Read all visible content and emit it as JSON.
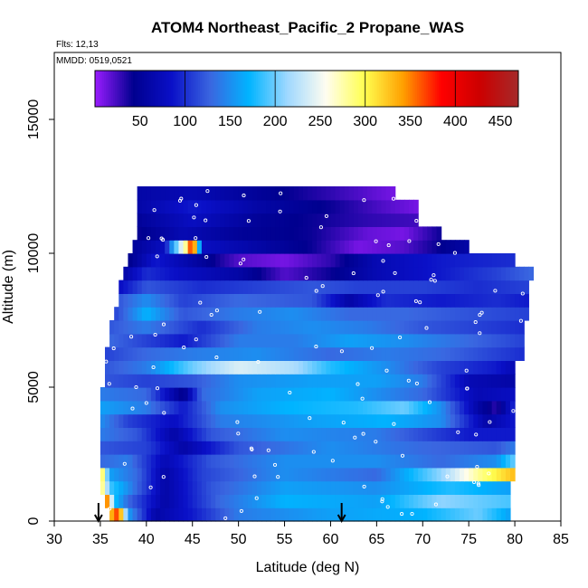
{
  "chart_data": {
    "type": "heatmap",
    "title": "ATOM4 Northeast_Pacific_2 Propane_WAS",
    "annotations": {
      "flights": "Flts: 12,13",
      "dates": "MMDD: 0519,0521"
    },
    "xlabel": "Latitude (deg N)",
    "ylabel": "Altitude (m)",
    "xlim": [
      30,
      85
    ],
    "ylim": [
      0,
      17500
    ],
    "x_ticks": [
      30,
      35,
      40,
      45,
      50,
      55,
      60,
      65,
      70,
      75,
      80,
      85
    ],
    "y_ticks": [
      0,
      5000,
      10000,
      15000
    ],
    "colorbar": {
      "range": [
        0,
        470
      ],
      "ticks": [
        50,
        100,
        150,
        200,
        250,
        300,
        350,
        400,
        450
      ],
      "colors": [
        "#9a1cff",
        "#00008f",
        "#0a10c8",
        "#3a66e0",
        "#00b4ff",
        "#9fd8ff",
        "#fffdf0",
        "#ffff50",
        "#ffa000",
        "#ff0000",
        "#cc0000",
        "#a52a2a"
      ]
    },
    "arrows_at_latitude": [
      34.8,
      61.2
    ],
    "bands": [
      {
        "alt": [
          0,
          500
        ],
        "lat": [
          36,
          79.5
        ],
        "stops": [
          [
            36,
            320
          ],
          [
            37,
            380
          ],
          [
            38,
            160
          ],
          [
            41,
            60
          ],
          [
            45,
            90
          ],
          [
            50,
            140
          ],
          [
            60,
            160
          ],
          [
            70,
            170
          ],
          [
            76,
            200
          ],
          [
            79.5,
            160
          ]
        ]
      },
      {
        "alt": [
          500,
          1000
        ],
        "lat": [
          35.5,
          79.5
        ],
        "stops": [
          [
            35.5,
            400
          ],
          [
            36.5,
            180
          ],
          [
            38,
            130
          ],
          [
            42,
            60
          ],
          [
            48,
            130
          ],
          [
            55,
            170
          ],
          [
            65,
            160
          ],
          [
            72,
            210
          ],
          [
            79.5,
            190
          ]
        ]
      },
      {
        "alt": [
          1000,
          1500
        ],
        "lat": [
          35,
          79.5
        ],
        "stops": [
          [
            35,
            310
          ],
          [
            36,
            190
          ],
          [
            38,
            150
          ],
          [
            42,
            60
          ],
          [
            47,
            120
          ],
          [
            55,
            160
          ],
          [
            65,
            150
          ],
          [
            73,
            180
          ],
          [
            79.5,
            160
          ]
        ]
      },
      {
        "alt": [
          1500,
          2000
        ],
        "lat": [
          35,
          80
        ],
        "stops": [
          [
            35,
            330
          ],
          [
            36,
            160
          ],
          [
            39,
            130
          ],
          [
            42,
            60
          ],
          [
            46,
            110
          ],
          [
            55,
            150
          ],
          [
            65,
            130
          ],
          [
            72,
            210
          ],
          [
            76,
            280
          ],
          [
            80,
            330
          ]
        ]
      },
      {
        "alt": [
          2000,
          2500
        ],
        "lat": [
          35,
          80
        ],
        "stops": [
          [
            35,
            130
          ],
          [
            38,
            140
          ],
          [
            42,
            70
          ],
          [
            47,
            120
          ],
          [
            55,
            150
          ],
          [
            65,
            150
          ],
          [
            72,
            130
          ],
          [
            78,
            150
          ],
          [
            80,
            200
          ]
        ]
      },
      {
        "alt": [
          2500,
          3000
        ],
        "lat": [
          35,
          80
        ],
        "stops": [
          [
            35,
            120
          ],
          [
            40,
            110
          ],
          [
            44,
            60
          ],
          [
            50,
            120
          ],
          [
            60,
            150
          ],
          [
            70,
            130
          ],
          [
            78,
            120
          ],
          [
            80,
            140
          ]
        ]
      },
      {
        "alt": [
          3000,
          3500
        ],
        "lat": [
          35,
          80
        ],
        "stops": [
          [
            35,
            140
          ],
          [
            39,
            120
          ],
          [
            43,
            60
          ],
          [
            47,
            120
          ],
          [
            55,
            150
          ],
          [
            65,
            140
          ],
          [
            75,
            90
          ],
          [
            80,
            90
          ]
        ]
      },
      {
        "alt": [
          3500,
          4000
        ],
        "lat": [
          35,
          80
        ],
        "stops": [
          [
            35,
            150
          ],
          [
            38,
            110
          ],
          [
            43,
            80
          ],
          [
            48,
            140
          ],
          [
            58,
            160
          ],
          [
            66,
            170
          ],
          [
            72,
            150
          ],
          [
            77,
            60
          ],
          [
            80,
            90
          ]
        ]
      },
      {
        "alt": [
          4000,
          4500
        ],
        "lat": [
          35,
          80
        ],
        "stops": [
          [
            35,
            160
          ],
          [
            40,
            140
          ],
          [
            44,
            90
          ],
          [
            48,
            150
          ],
          [
            55,
            170
          ],
          [
            63,
            180
          ],
          [
            68,
            200
          ],
          [
            72,
            150
          ],
          [
            76,
            60
          ],
          [
            78,
            30
          ],
          [
            80,
            100
          ]
        ]
      },
      {
        "alt": [
          4500,
          5000
        ],
        "lat": [
          35,
          80
        ],
        "stops": [
          [
            35,
            140
          ],
          [
            40,
            130
          ],
          [
            44,
            40
          ],
          [
            46,
            130
          ],
          [
            52,
            160
          ],
          [
            60,
            170
          ],
          [
            65,
            150
          ],
          [
            70,
            130
          ],
          [
            76,
            70
          ],
          [
            80,
            80
          ]
        ]
      },
      {
        "alt": [
          5000,
          5500
        ],
        "lat": [
          35.5,
          80
        ],
        "stops": [
          [
            35.5,
            120
          ],
          [
            40,
            110
          ],
          [
            45,
            120
          ],
          [
            50,
            150
          ],
          [
            58,
            160
          ],
          [
            65,
            160
          ],
          [
            70,
            140
          ],
          [
            75,
            70
          ],
          [
            80,
            60
          ]
        ]
      },
      {
        "alt": [
          5500,
          6000
        ],
        "lat": [
          35.5,
          80
        ],
        "stops": [
          [
            35.5,
            120
          ],
          [
            40,
            140
          ],
          [
            45,
            200
          ],
          [
            50,
            240
          ],
          [
            56,
            220
          ],
          [
            60,
            180
          ],
          [
            66,
            150
          ],
          [
            72,
            110
          ],
          [
            78,
            90
          ],
          [
            80,
            70
          ]
        ]
      },
      {
        "alt": [
          6000,
          6500
        ],
        "lat": [
          35.5,
          81
        ],
        "stops": [
          [
            35.5,
            110
          ],
          [
            40,
            130
          ],
          [
            45,
            140
          ],
          [
            52,
            150
          ],
          [
            60,
            130
          ],
          [
            66,
            140
          ],
          [
            72,
            130
          ],
          [
            78,
            110
          ],
          [
            81,
            100
          ]
        ]
      },
      {
        "alt": [
          6500,
          7000
        ],
        "lat": [
          36,
          81
        ],
        "stops": [
          [
            36,
            130
          ],
          [
            40,
            110
          ],
          [
            44,
            90
          ],
          [
            50,
            140
          ],
          [
            56,
            140
          ],
          [
            62,
            160
          ],
          [
            68,
            150
          ],
          [
            75,
            130
          ],
          [
            81,
            110
          ]
        ]
      },
      {
        "alt": [
          7000,
          7500
        ],
        "lat": [
          36,
          81
        ],
        "stops": [
          [
            36,
            120
          ],
          [
            40,
            140
          ],
          [
            46,
            100
          ],
          [
            52,
            140
          ],
          [
            58,
            150
          ],
          [
            64,
            140
          ],
          [
            70,
            120
          ],
          [
            76,
            110
          ],
          [
            81,
            100
          ]
        ]
      },
      {
        "alt": [
          7500,
          8000
        ],
        "lat": [
          36.5,
          81.5
        ],
        "stops": [
          [
            36.5,
            110
          ],
          [
            40,
            170
          ],
          [
            44,
            120
          ],
          [
            50,
            140
          ],
          [
            56,
            150
          ],
          [
            62,
            130
          ],
          [
            68,
            130
          ],
          [
            74,
            120
          ],
          [
            81.5,
            110
          ]
        ]
      },
      {
        "alt": [
          8000,
          8500
        ],
        "lat": [
          37,
          81.5
        ],
        "stops": [
          [
            37,
            120
          ],
          [
            40,
            150
          ],
          [
            44,
            110
          ],
          [
            50,
            130
          ],
          [
            58,
            120
          ],
          [
            62,
            60
          ],
          [
            66,
            100
          ],
          [
            72,
            90
          ],
          [
            78,
            100
          ],
          [
            81.5,
            90
          ]
        ]
      },
      {
        "alt": [
          8500,
          9000
        ],
        "lat": [
          37,
          81.5
        ],
        "stops": [
          [
            37,
            80
          ],
          [
            40,
            120
          ],
          [
            46,
            100
          ],
          [
            52,
            110
          ],
          [
            58,
            120
          ],
          [
            63,
            110
          ],
          [
            70,
            110
          ],
          [
            76,
            100
          ],
          [
            81.5,
            110
          ]
        ]
      },
      {
        "alt": [
          9000,
          9500
        ],
        "lat": [
          37.5,
          82
        ],
        "stops": [
          [
            37.5,
            60
          ],
          [
            40,
            100
          ],
          [
            44,
            80
          ],
          [
            50,
            60
          ],
          [
            55,
            20
          ],
          [
            60,
            40
          ],
          [
            65,
            70
          ],
          [
            72,
            90
          ],
          [
            78,
            110
          ],
          [
            82,
            130
          ]
        ]
      },
      {
        "alt": [
          9500,
          10000
        ],
        "lat": [
          38,
          80
        ],
        "stops": [
          [
            38,
            40
          ],
          [
            41,
            90
          ],
          [
            45,
            60
          ],
          [
            50,
            20
          ],
          [
            55,
            10
          ],
          [
            60,
            30
          ],
          [
            65,
            70
          ],
          [
            72,
            90
          ],
          [
            80,
            100
          ]
        ]
      },
      {
        "alt": [
          10000,
          10500
        ],
        "lat": [
          38.5,
          75
        ],
        "stops": [
          [
            38.5,
            50
          ],
          [
            42,
            80
          ],
          [
            43.5,
            220
          ],
          [
            44.5,
            300
          ],
          [
            45,
            420
          ],
          [
            46,
            80
          ],
          [
            52,
            60
          ],
          [
            58,
            40
          ],
          [
            63,
            10
          ],
          [
            68,
            20
          ],
          [
            75,
            60
          ]
        ]
      },
      {
        "alt": [
          10500,
          11000
        ],
        "lat": [
          39,
          72
        ],
        "stops": [
          [
            39,
            40
          ],
          [
            44,
            70
          ],
          [
            50,
            50
          ],
          [
            58,
            40
          ],
          [
            64,
            15
          ],
          [
            68,
            10
          ],
          [
            72,
            40
          ]
        ]
      },
      {
        "alt": [
          11000,
          11500
        ],
        "lat": [
          39,
          69.5
        ],
        "stops": [
          [
            39,
            50
          ],
          [
            45,
            80
          ],
          [
            52,
            50
          ],
          [
            58,
            40
          ],
          [
            64,
            30
          ],
          [
            69.5,
            25
          ]
        ]
      },
      {
        "alt": [
          11500,
          12000
        ],
        "lat": [
          39,
          69.5
        ],
        "stops": [
          [
            39,
            60
          ],
          [
            45,
            90
          ],
          [
            52,
            60
          ],
          [
            60,
            40
          ],
          [
            66,
            20
          ],
          [
            69.5,
            10
          ]
        ]
      },
      {
        "alt": [
          12000,
          12500
        ],
        "lat": [
          39,
          67
        ],
        "stops": [
          [
            39,
            60
          ],
          [
            45,
            70
          ],
          [
            52,
            50
          ],
          [
            60,
            30
          ],
          [
            67,
            10
          ]
        ]
      }
    ]
  }
}
